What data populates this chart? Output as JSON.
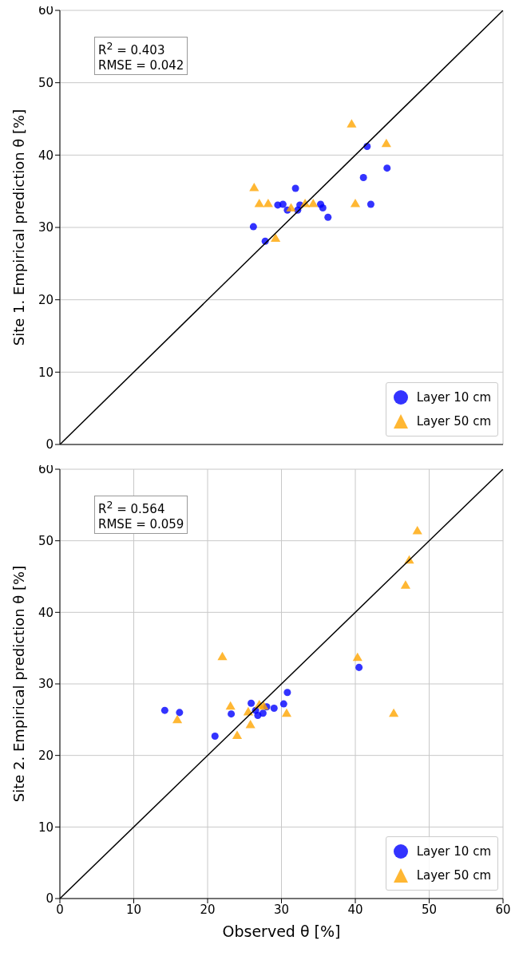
{
  "chart_data": [
    {
      "type": "scatter",
      "ylabel": "Site 1. Empirical prediction θ [%]",
      "xlim": [
        0,
        60
      ],
      "ylim": [
        0,
        60
      ],
      "xticks": [
        0,
        10,
        20,
        30,
        40,
        50,
        60
      ],
      "yticks": [
        0,
        10,
        20,
        30,
        40,
        50,
        60
      ],
      "tick_labels": "y",
      "grid": true,
      "legend": "bottom right",
      "annotations": [
        "R$^{2}$ = 0.403",
        "RMSE = 0.042"
      ],
      "series": [
        {
          "name": "Layer 10 cm",
          "color": "#0000ff",
          "marker": "circle",
          "x": [
            26.2,
            27.8,
            29.5,
            30.2,
            30.8,
            31.9,
            32.2,
            32.5,
            35.3,
            35.6,
            36.3,
            41.1,
            41.6,
            42.1,
            44.3
          ],
          "values": [
            30.1,
            28.1,
            33.1,
            33.2,
            32.4,
            35.4,
            32.4,
            33.1,
            33.2,
            32.7,
            31.4,
            36.9,
            41.2,
            33.2,
            38.2
          ]
        },
        {
          "name": "Layer 50 cm",
          "color": "#ffa500",
          "marker": "triangle",
          "x": [
            26.3,
            27.0,
            28.2,
            29.2,
            31.3,
            33.2,
            34.3,
            39.5,
            40.0,
            44.2
          ],
          "values": [
            35.4,
            33.2,
            33.2,
            28.4,
            32.6,
            33.2,
            33.2,
            44.2,
            33.2,
            41.5
          ]
        },
        {
          "type": "line",
          "color": "#000000",
          "marker": "none",
          "x": [
            0,
            60
          ],
          "values": [
            0,
            60
          ]
        }
      ]
    },
    {
      "type": "scatter",
      "xlabel": "Observed θ [%]",
      "ylabel": "Site 2. Empirical prediction θ [%]",
      "xlim": [
        0,
        60
      ],
      "ylim": [
        0,
        60
      ],
      "xticks": [
        0,
        10,
        20,
        30,
        40,
        50,
        60
      ],
      "yticks": [
        0,
        10,
        20,
        30,
        40,
        50,
        60
      ],
      "grid": true,
      "legend": "bottom right",
      "annotations": [
        "R$^{2}$ = 0.564",
        "RMSE = 0.059"
      ],
      "series": [
        {
          "name": "Layer 10 cm",
          "color": "#0000ff",
          "marker": "circle",
          "x": [
            14.2,
            16.2,
            21.0,
            23.2,
            25.9,
            26.5,
            26.8,
            27.5,
            28.0,
            29.0,
            30.3,
            30.8,
            40.5
          ],
          "values": [
            26.3,
            26.0,
            22.7,
            25.8,
            27.3,
            26.3,
            25.6,
            25.9,
            26.8,
            26.6,
            27.2,
            28.8,
            32.3
          ]
        },
        {
          "name": "Layer 50 cm",
          "color": "#ffa500",
          "marker": "triangle",
          "x": [
            15.9,
            22.0,
            23.1,
            24.0,
            25.5,
            25.8,
            27.0,
            27.6,
            30.7,
            40.3,
            45.2,
            46.8,
            47.3,
            48.4
          ],
          "values": [
            24.9,
            33.7,
            26.8,
            22.7,
            26.0,
            24.2,
            27.0,
            26.8,
            25.8,
            33.6,
            25.8,
            43.7,
            47.2,
            51.3
          ]
        },
        {
          "type": "line",
          "color": "#000000",
          "marker": "none",
          "x": [
            0,
            60
          ],
          "values": [
            0,
            60
          ]
        }
      ]
    }
  ]
}
